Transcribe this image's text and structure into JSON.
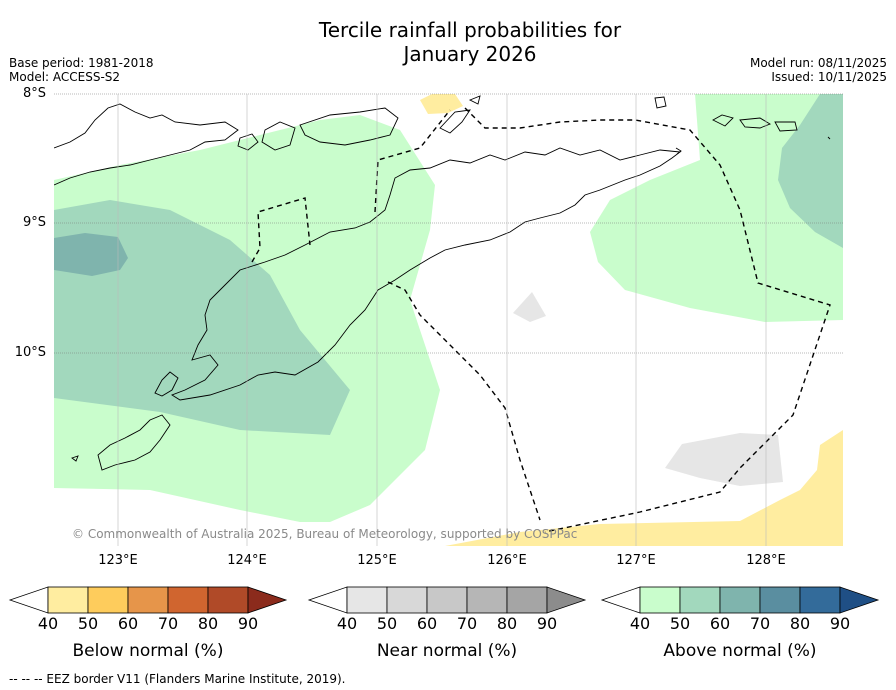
{
  "title": {
    "line1": "Tercile rainfall probabilities for",
    "line2": "January 2026"
  },
  "meta": {
    "base_period": "Base period: 1981-2018",
    "model": "Model: ACCESS-S2",
    "model_run": "Model run: 08/11/2025",
    "issued": "Issued: 10/11/2025"
  },
  "axes": {
    "lat_labels": [
      "8°S",
      "9°S",
      "10°S"
    ],
    "lon_labels": [
      "123°E",
      "124°E",
      "125°E",
      "126°E",
      "127°E",
      "128°E"
    ]
  },
  "copyright": "© Commonwealth of Australia 2025, Bureau of Meteorology, supported by COSPPac",
  "colorbars": [
    {
      "title": "Below normal (%)",
      "ticks": [
        "40",
        "50",
        "60",
        "70",
        "80",
        "90"
      ],
      "colors": [
        "#ffffff",
        "#ffeda0",
        "#fecc5c",
        "#e6954a",
        "#d0652f",
        "#b04a28",
        "#8b2b1c"
      ]
    },
    {
      "title": "Near normal (%)",
      "ticks": [
        "40",
        "50",
        "60",
        "70",
        "80",
        "90"
      ],
      "colors": [
        "#ffffff",
        "#e6e6e6",
        "#d8d8d8",
        "#c8c8c8",
        "#b6b6b6",
        "#a5a5a5",
        "#8c8c8c"
      ]
    },
    {
      "title": "Above normal (%)",
      "ticks": [
        "40",
        "50",
        "60",
        "70",
        "80",
        "90"
      ],
      "colors": [
        "#ffffff",
        "#c9fdcc",
        "#a2d8bd",
        "#7fb4ad",
        "#5a8ea0",
        "#336b9a",
        "#1f4f85"
      ]
    }
  ],
  "footer": "--  --  -- EEZ border V11 (Flanders Marine Institute, 2019)."
}
